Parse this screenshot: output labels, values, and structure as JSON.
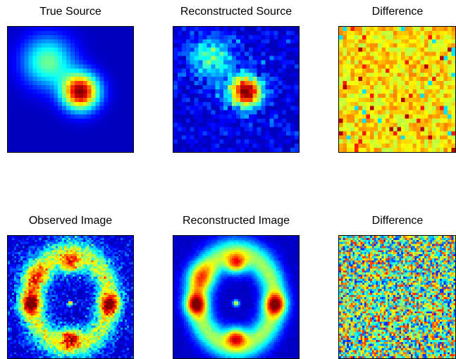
{
  "chart_data": [
    {
      "type": "heatmap",
      "title": "True Source",
      "colormap": "jet",
      "grid": false,
      "resolution": [
        30,
        30
      ],
      "components": [
        {
          "center": [
            0.58,
            0.52
          ],
          "sigma": 0.1,
          "amplitude": 1.0
        },
        {
          "center": [
            0.32,
            0.28
          ],
          "sigma": 0.14,
          "amplitude": 0.45
        }
      ],
      "noise": 0.0
    },
    {
      "type": "heatmap",
      "title": "Reconstructed Source",
      "colormap": "jet",
      "grid": false,
      "resolution": [
        30,
        30
      ],
      "components": [
        {
          "center": [
            0.58,
            0.52
          ],
          "sigma": 0.09,
          "amplitude": 1.0
        },
        {
          "center": [
            0.3,
            0.26
          ],
          "sigma": 0.13,
          "amplitude": 0.4
        }
      ],
      "noise": 0.1
    },
    {
      "type": "heatmap",
      "title": "Difference",
      "colormap": "jet",
      "grid": false,
      "resolution": [
        30,
        30
      ],
      "value_range": [
        0.55,
        0.75
      ],
      "outlier_levels": [
        0.35,
        0.85,
        0.95
      ],
      "noise": 0.08
    },
    {
      "type": "heatmap",
      "title": "Observed Image",
      "colormap": "jet",
      "grid": false,
      "resolution": [
        60,
        60
      ],
      "ring": {
        "center": [
          0.5,
          0.52
        ],
        "radius": [
          0.38,
          0.31
        ],
        "width": 0.07,
        "amplitude": 0.5
      },
      "knots": [
        {
          "center": [
            0.5,
            0.23
          ],
          "sigma": 0.055,
          "amplitude": 0.55
        },
        {
          "center": [
            0.5,
            0.83
          ],
          "sigma": 0.055,
          "amplitude": 0.55
        },
        {
          "center": [
            0.18,
            0.56
          ],
          "sigma": 0.06,
          "amplitude": 0.6
        },
        {
          "center": [
            0.81,
            0.56
          ],
          "sigma": 0.06,
          "amplitude": 0.6
        },
        {
          "center": [
            0.22,
            0.34
          ],
          "sigma": 0.085,
          "amplitude": 0.32
        },
        {
          "center": [
            0.5,
            0.55
          ],
          "sigma": 0.018,
          "amplitude": 0.6
        }
      ],
      "noise": 0.12
    },
    {
      "type": "heatmap",
      "title": "Reconstructed Image",
      "colormap": "jet",
      "grid": false,
      "resolution": [
        60,
        60
      ],
      "ring": {
        "center": [
          0.5,
          0.52
        ],
        "radius": [
          0.38,
          0.31
        ],
        "width": 0.07,
        "amplitude": 0.5
      },
      "knots": [
        {
          "center": [
            0.5,
            0.23
          ],
          "sigma": 0.055,
          "amplitude": 0.55
        },
        {
          "center": [
            0.5,
            0.83
          ],
          "sigma": 0.055,
          "amplitude": 0.55
        },
        {
          "center": [
            0.18,
            0.56
          ],
          "sigma": 0.06,
          "amplitude": 0.6
        },
        {
          "center": [
            0.81,
            0.56
          ],
          "sigma": 0.06,
          "amplitude": 0.6
        },
        {
          "center": [
            0.22,
            0.34
          ],
          "sigma": 0.085,
          "amplitude": 0.32
        },
        {
          "center": [
            0.5,
            0.55
          ],
          "sigma": 0.018,
          "amplitude": 0.6
        }
      ],
      "noise": 0.02
    },
    {
      "type": "heatmap",
      "title": "Difference",
      "colormap": "jet",
      "grid": false,
      "resolution": [
        60,
        60
      ],
      "value_range": [
        0.15,
        0.85
      ],
      "noise": 0.0
    }
  ]
}
